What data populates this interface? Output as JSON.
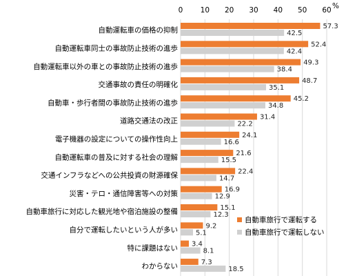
{
  "chart_data": {
    "type": "bar",
    "orientation": "horizontal",
    "xlim": [
      0,
      60
    ],
    "xticks": [
      0,
      10,
      20,
      30,
      40,
      50,
      60
    ],
    "unit": "%",
    "legend_position": "bottom-right",
    "categories": [
      "自動運転車の価格の抑制",
      "自動運転車同士の事故防止技術の進歩",
      "自動運転車以外の車との事故防止技術の進歩",
      "交通事故の責任の明確化",
      "自動車・歩行者間の事故防止技術の進歩",
      "道路交通法の改正",
      "電子機器の設定についての操作性向上",
      "自動運転車の普及に対する社会の理解",
      "交通インフラなどへの公共投資の財源確保",
      "災害・テロ・通信障害等への対策",
      "自動車旅行に対応した観光地や宿泊施設の整備",
      "自分で運転したいという人が多い",
      "特に課題はない",
      "わからない"
    ],
    "series": [
      {
        "name": "自動車旅行で運転する",
        "color": "#ED7D31",
        "values": [
          57.3,
          52.4,
          49.3,
          48.7,
          45.2,
          31.4,
          24.1,
          21.6,
          22.4,
          16.9,
          15.1,
          9.2,
          3.4,
          7.3
        ]
      },
      {
        "name": "自動車旅行で運転しない",
        "color": "#D0D0D0",
        "values": [
          42.5,
          42.4,
          38.4,
          35.1,
          34.8,
          22.2,
          16.6,
          15.5,
          14.7,
          12.9,
          12.3,
          5.1,
          8.1,
          18.5
        ]
      }
    ]
  }
}
